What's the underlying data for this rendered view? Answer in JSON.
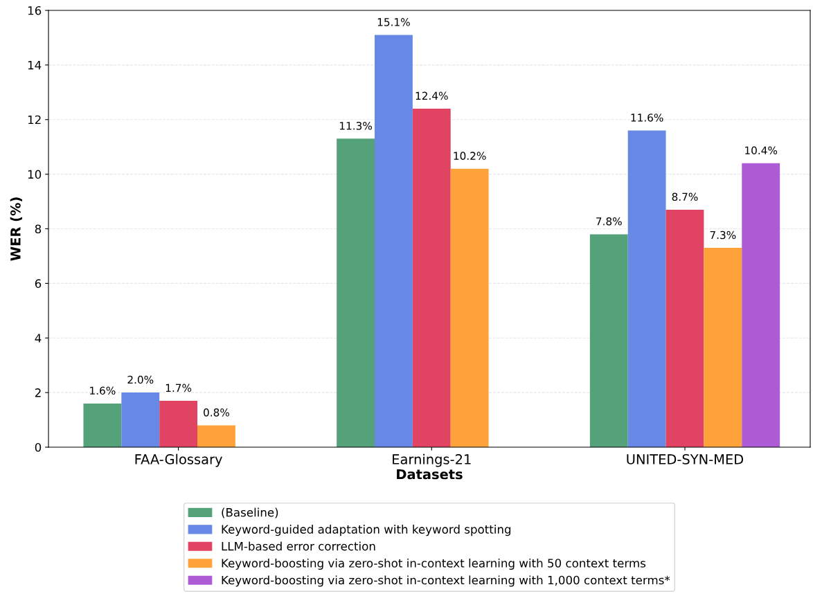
{
  "chart_data": {
    "type": "bar",
    "xlabel": "Datasets",
    "ylabel": "WER (%)",
    "categories": [
      "FAA-Glossary",
      "Earnings-21",
      "UNITED-SYN-MED"
    ],
    "series": [
      {
        "name": "(Baseline)",
        "color": "#55a27a",
        "values": [
          1.6,
          11.3,
          7.8
        ],
        "value_labels": [
          "1.6%",
          "11.3%",
          "7.8%"
        ]
      },
      {
        "name": "Keyword-guided adaptation with keyword spotting",
        "color": "#6788e5",
        "values": [
          2.0,
          15.1,
          11.6
        ],
        "value_labels": [
          "2.0%",
          "15.1%",
          "11.6%"
        ]
      },
      {
        "name": "LLM-based error correction",
        "color": "#e04462",
        "values": [
          1.7,
          12.4,
          8.7
        ],
        "value_labels": [
          "1.7%",
          "12.4%",
          "8.7%"
        ]
      },
      {
        "name": "Keyword-boosting via zero-shot in-context learning with 50 context terms",
        "color": "#ffa23a",
        "values": [
          0.8,
          10.2,
          7.3
        ],
        "value_labels": [
          "0.8%",
          "10.2%",
          "7.3%"
        ]
      },
      {
        "name": "Keyword-boosting via zero-shot in-context learning with 1,000 context terms*",
        "color": "#ad5cd6",
        "values": [
          null,
          null,
          10.4
        ],
        "value_labels": [
          null,
          null,
          "10.4%"
        ]
      }
    ],
    "ylim": [
      0,
      16
    ],
    "yticks": [
      0,
      2,
      4,
      6,
      8,
      10,
      12,
      14,
      16
    ],
    "grid": "y",
    "legend": "bottom"
  }
}
